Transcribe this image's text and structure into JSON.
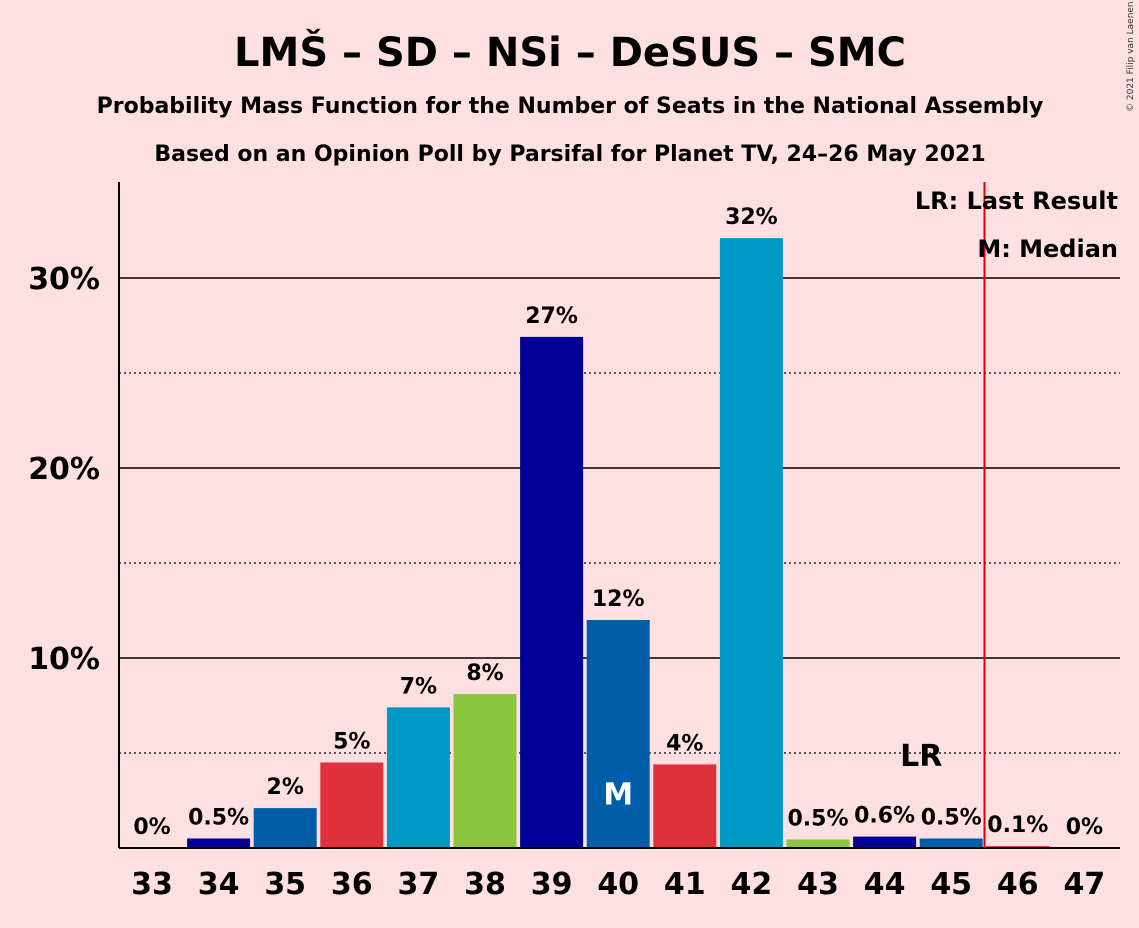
{
  "title": "LMŠ – SD – NSi – DeSUS – SMC",
  "subtitle": "Probability Mass Function for the Number of Seats in the National Assembly",
  "subtitle2": "Based on an Opinion Poll by Parsifal for Planet TV, 24–26 May 2021",
  "copyright": "© 2021 Filip van Laenen",
  "legend": {
    "lr": "LR: Last Result",
    "m": "M: Median"
  },
  "markers": {
    "median_label": "M",
    "last_result_label": "LR"
  },
  "colors": {
    "background": "#ffe0e2",
    "last_result_line": "#e00000",
    "median_text": "#ffffff"
  },
  "chart_data": {
    "type": "bar",
    "categories": [
      "33",
      "34",
      "35",
      "36",
      "37",
      "38",
      "39",
      "40",
      "41",
      "42",
      "43",
      "44",
      "45",
      "46",
      "47"
    ],
    "values": [
      0,
      0.5,
      2.1,
      4.5,
      7.4,
      8.1,
      26.9,
      12.0,
      4.4,
      32.1,
      0.45,
      0.6,
      0.5,
      0.1,
      0
    ],
    "labels": [
      "0%",
      "0.5%",
      "2%",
      "5%",
      "7%",
      "8%",
      "27%",
      "12%",
      "4%",
      "32%",
      "0.5%",
      "0.6%",
      "0.5%",
      "0.1%",
      "0%"
    ],
    "bar_colors": [
      "#005da8",
      "#000096",
      "#005da8",
      "#e0303a",
      "#0099c6",
      "#8cc63f",
      "#000096",
      "#005da8",
      "#e0303a",
      "#0099c6",
      "#8cc63f",
      "#000096",
      "#005da8",
      "#e0303a",
      "#0099c6"
    ],
    "ylim": [
      0,
      35
    ],
    "yticks": [
      10,
      20,
      30
    ],
    "ytick_labels": [
      "10%",
      "20%",
      "30%"
    ],
    "minor_gridlines": [
      5,
      15,
      25
    ],
    "median": "40",
    "last_result": "45",
    "xlabel": "",
    "ylabel": ""
  }
}
